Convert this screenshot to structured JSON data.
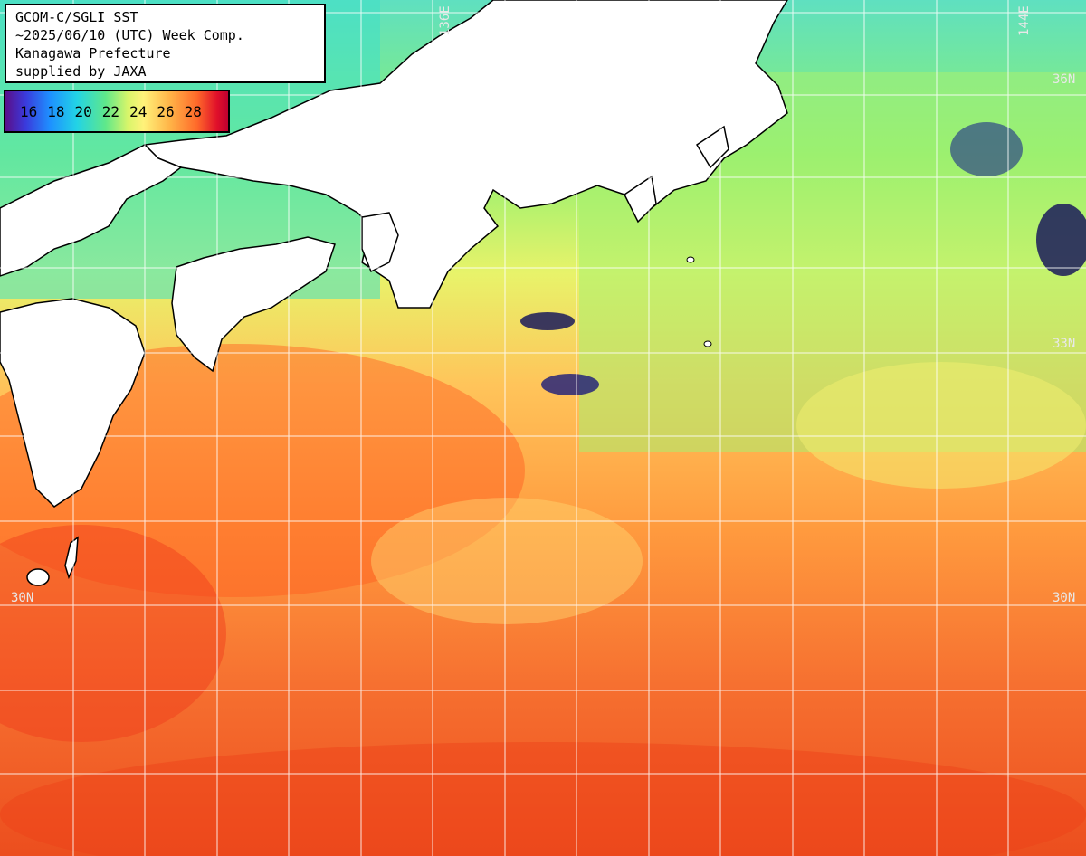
{
  "title_block": {
    "lines": [
      "GCOM-C/SGLI SST",
      "~2025/06/10 (UTC) Week Comp.",
      "Kanagawa Prefecture",
      "supplied by JAXA"
    ]
  },
  "legend": {
    "labels": [
      "16",
      "18",
      "20",
      "22",
      "24",
      "26",
      "28"
    ]
  },
  "grid_labels": {
    "lon_136": "136E",
    "lon_144": "144E",
    "lat_36": "36N",
    "lat_33": "33N",
    "lat_30_left": "30N",
    "lat_30_right": "30N"
  },
  "colors": {
    "land": "#ffffff",
    "coast": "#000000",
    "grid": "#ffffff",
    "warm_sea": "#f07a2a",
    "cool_sea": "#8ee86a"
  }
}
